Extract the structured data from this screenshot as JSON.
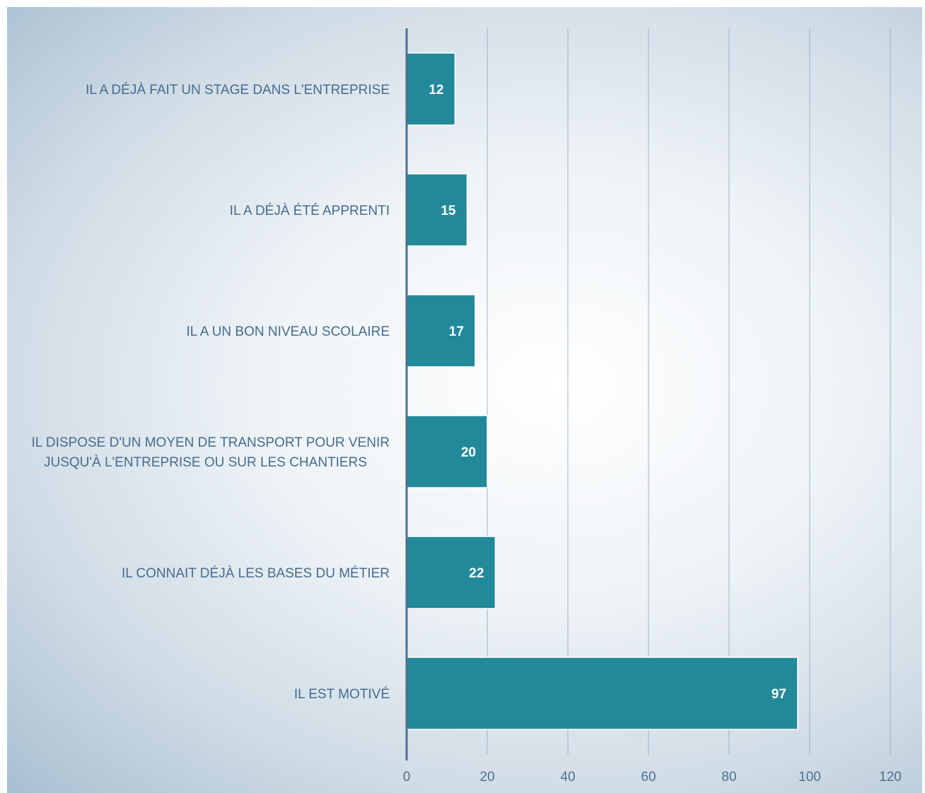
{
  "chart_data": {
    "type": "bar",
    "orientation": "horizontal",
    "categories": [
      "IL A DÉJÀ FAIT UN STAGE DANS L'ENTREPRISE",
      "IL A DÉJÀ ÉTÉ APPRENTI",
      "IL A UN BON NIVEAU SCOLAIRE",
      "IL DISPOSE D'UN MOYEN DE TRANSPORT POUR VENIR JUSQU'À L'ENTREPRISE OU SUR LES CHANTIERS",
      "IL CONNAIT DÉJÀ LES BASES DU MÉTIER",
      "IL EST MOTIVÉ"
    ],
    "category_lines": [
      [
        "IL A DÉJÀ FAIT UN STAGE DANS L'ENTREPRISE"
      ],
      [
        "IL A DÉJÀ ÉTÉ APPRENTI"
      ],
      [
        "IL A UN BON NIVEAU SCOLAIRE"
      ],
      [
        "IL DISPOSE D'UN MOYEN DE TRANSPORT POUR VENIR",
        "JUSQU'À L'ENTREPRISE OU SUR LES CHANTIERS"
      ],
      [
        "IL CONNAIT DÉJÀ LES BASES DU MÉTIER"
      ],
      [
        "IL EST MOTIVÉ"
      ]
    ],
    "values": [
      12,
      15,
      17,
      20,
      22,
      97
    ],
    "xlim": [
      0,
      120
    ],
    "xticks": [
      0,
      20,
      40,
      60,
      80,
      100,
      120
    ],
    "grid": true,
    "legend": "none",
    "title": "",
    "xlabel": "",
    "ylabel": "",
    "colors": {
      "bar": "#21899a",
      "bar_border": "#ffffff",
      "axis": "#4f6f8e",
      "grid": "#9fb3c4"
    }
  }
}
